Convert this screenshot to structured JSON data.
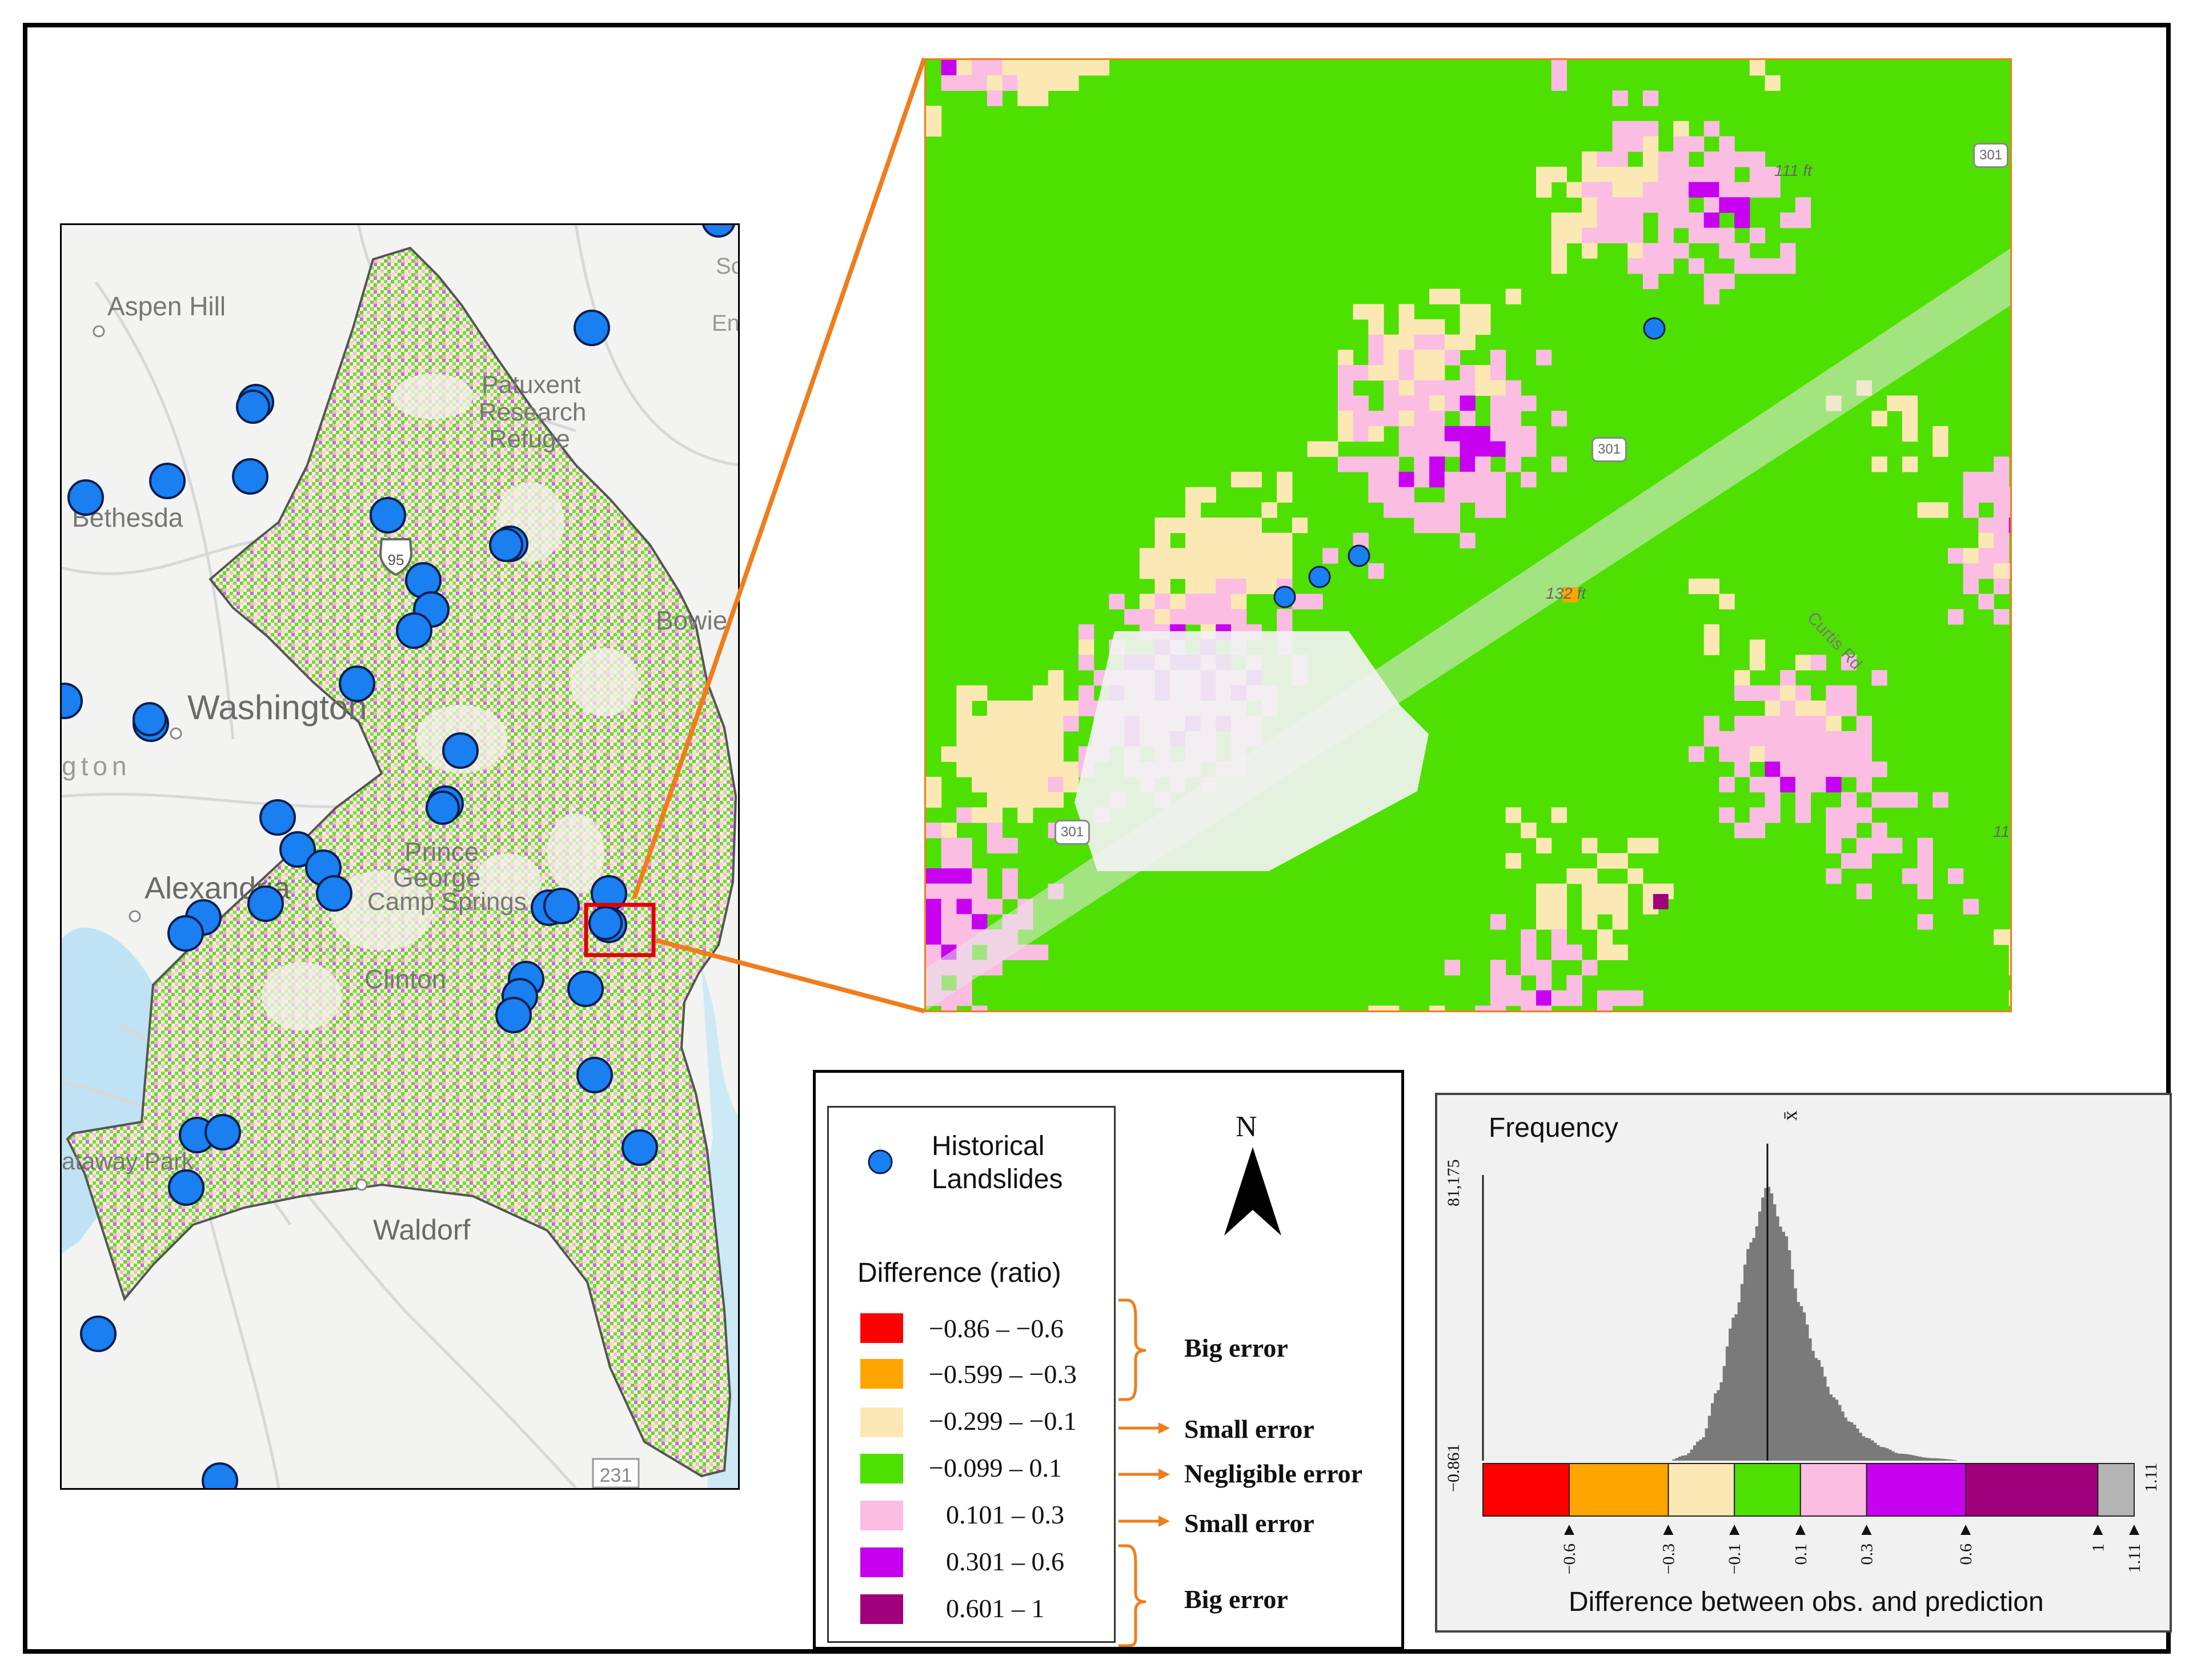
{
  "left_map": {
    "place_labels": [
      "Aspen Hill",
      "Patuxent",
      "Research",
      "Refuge",
      "Bethesda",
      "Bowie",
      "Washington",
      "Alexandria",
      "Prince",
      "George",
      "Camp Springs",
      "Clinton",
      "Waldorf",
      "ataway Park",
      "gton",
      "Sc",
      "En"
    ],
    "road_shields": [
      "95",
      "231"
    ]
  },
  "inset_map": {
    "labels": [
      "111 ft",
      "132 ft",
      "Curtis Rd",
      "11"
    ],
    "road_shields": [
      "301",
      "301",
      "301"
    ]
  },
  "legend": {
    "landslide_label_line1": "Historical",
    "landslide_label_line2": "Landslides",
    "north_label": "N",
    "difference_title": "Difference (ratio)",
    "classes": [
      {
        "range": "−0.86 – −0.6",
        "color": "#ff0000"
      },
      {
        "range": "−0.599 – −0.3",
        "color": "#ffa500"
      },
      {
        "range": "−0.299 – −0.1",
        "color": "#fce8b4"
      },
      {
        "range": "−0.099 – 0.1",
        "color": "#4ee000"
      },
      {
        "range": "0.101 – 0.3",
        "color": "#fbbde2"
      },
      {
        "range": "0.301 – 0.6",
        "color": "#c800f0"
      },
      {
        "range": "0.601 – 1",
        "color": "#a0007c"
      }
    ],
    "error_labels": [
      "Big error",
      "Small error",
      "Negligible error",
      "Small error",
      "Big error"
    ],
    "colors": {
      "landslide": "#1a7ff0",
      "arrow": "#f07d1c",
      "highlight": "#e00000"
    }
  },
  "histogram": {
    "y_label": "Frequency",
    "y_max_label": "81,175",
    "min_label": "−0.861",
    "max_label": "1.11",
    "mean_symbol": "x̄",
    "x_label": "Difference between obs. and prediction",
    "tick_labels": [
      "−0.6",
      "−0.3",
      "−0.1",
      "0.1",
      "0.3",
      "0.6",
      "1",
      "1.11"
    ],
    "color_bar": [
      {
        "from": -0.861,
        "to": -0.6,
        "color": "#ff0000"
      },
      {
        "from": -0.6,
        "to": -0.3,
        "color": "#ffa500"
      },
      {
        "from": -0.3,
        "to": -0.1,
        "color": "#fce8b4"
      },
      {
        "from": -0.1,
        "to": 0.1,
        "color": "#4ee000"
      },
      {
        "from": 0.1,
        "to": 0.3,
        "color": "#fbbde2"
      },
      {
        "from": 0.3,
        "to": 0.6,
        "color": "#c800f0"
      },
      {
        "from": 0.6,
        "to": 1.0,
        "color": "#a0007c"
      },
      {
        "from": 1.0,
        "to": 1.11,
        "color": "#b4b4b4"
      }
    ]
  },
  "chart_data": {
    "type": "bar",
    "y_label": "Frequency",
    "x_label": "Difference between obs. and prediction",
    "xlim": [
      -0.861,
      1.11
    ],
    "ylim": [
      0,
      81175
    ],
    "mean": 0.0,
    "x": [
      -0.3,
      -0.25,
      -0.2,
      -0.15,
      -0.1,
      -0.05,
      0.0,
      0.05,
      0.1,
      0.15,
      0.2,
      0.25,
      0.3,
      0.35,
      0.4,
      0.5,
      0.6
    ],
    "values": [
      0,
      1500,
      6000,
      20000,
      41000,
      62000,
      78000,
      65000,
      44000,
      29000,
      18000,
      11000,
      6500,
      3800,
      2000,
      700,
      0
    ]
  }
}
